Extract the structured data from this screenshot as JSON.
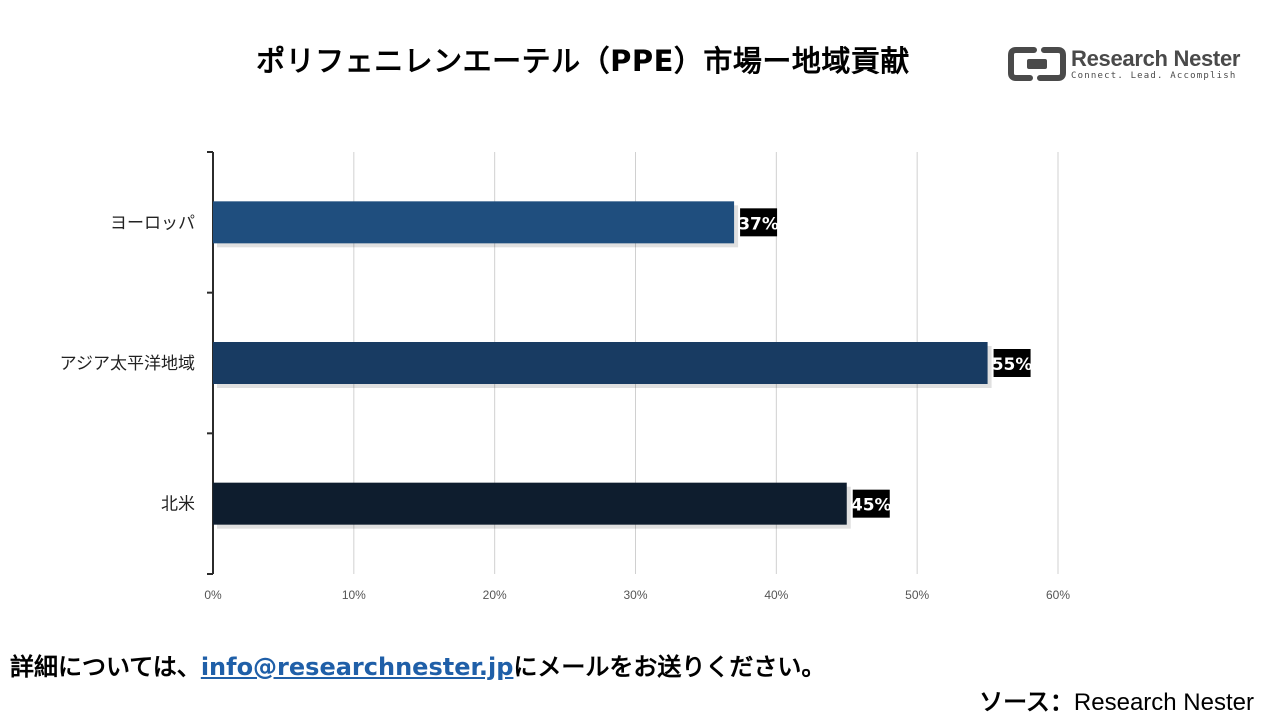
{
  "header": {
    "title": "ポリフェニレンエーテル（PPE）市場ー地域貢献"
  },
  "logo": {
    "name": "Research Nester",
    "tagline": "Connect. Lead. Accomplish",
    "icon": "research-nester-logo-icon",
    "color": "#4a4a4a"
  },
  "chart_data": {
    "type": "bar",
    "orientation": "horizontal",
    "categories": [
      "ヨーロッパ",
      "アジア太平洋地域",
      "北米"
    ],
    "values": [
      37,
      55,
      45
    ],
    "value_labels": [
      "37%",
      "55%",
      "45%"
    ],
    "colors": [
      "#1f4e7e",
      "#183b62",
      "#0e1d2e"
    ],
    "xlim": [
      0,
      60
    ],
    "xticks": [
      0,
      10,
      20,
      30,
      40,
      50,
      60
    ],
    "xtick_labels": [
      "0%",
      "10%",
      "20%",
      "30%",
      "40%",
      "50%",
      "60%"
    ],
    "grid": true,
    "legend": "none"
  },
  "footer": {
    "prefix": "詳細については、",
    "email": "info@researchnester.jp",
    "suffix": "にメールをお送りください。"
  },
  "source": {
    "label": "ソース：",
    "value": "Research Nester"
  }
}
